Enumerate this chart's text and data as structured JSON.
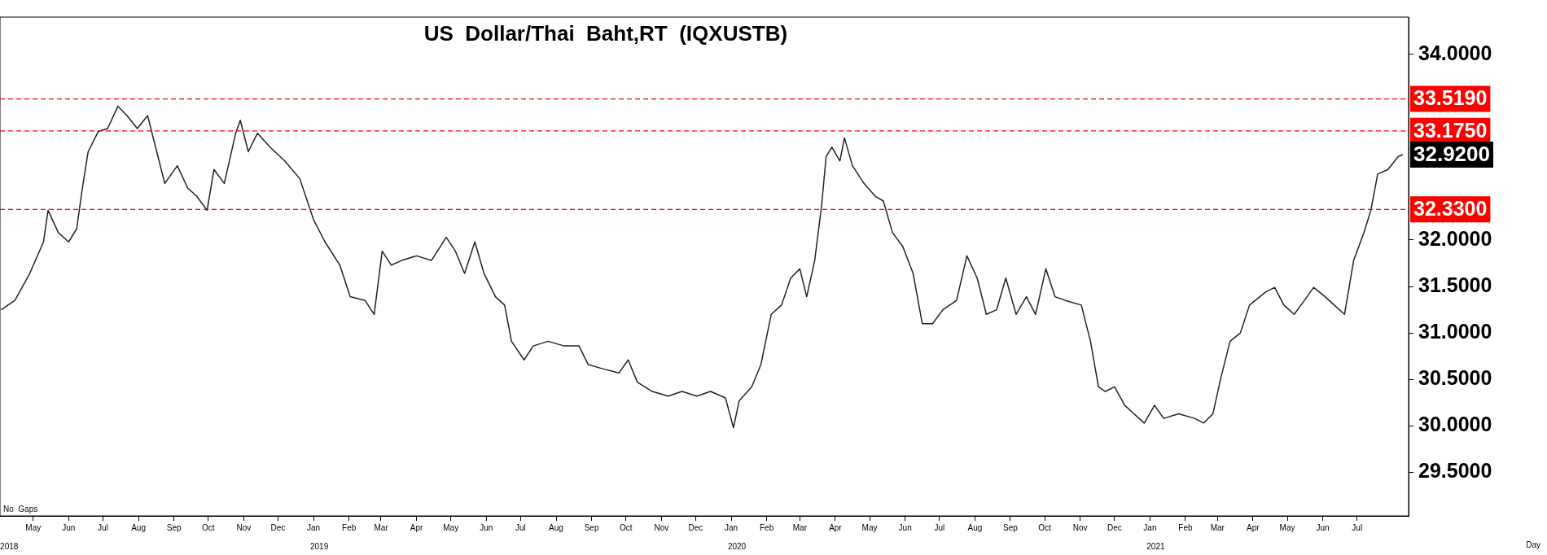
{
  "chart_data": {
    "type": "line",
    "title": "US  Dollar/Thai  Baht,RT  (IQXUSTB)",
    "x": [
      "2018-04-03",
      "2018-04-15",
      "2018-04-28",
      "2018-05-10",
      "2018-05-14",
      "2018-05-23",
      "2018-06-01",
      "2018-06-08",
      "2018-06-13",
      "2018-06-18",
      "2018-06-27",
      "2018-07-05",
      "2018-07-14",
      "2018-07-22",
      "2018-07-31",
      "2018-08-09",
      "2018-08-17",
      "2018-08-24",
      "2018-09-04",
      "2018-09-13",
      "2018-09-21",
      "2018-09-30",
      "2018-10-06",
      "2018-10-15",
      "2018-10-25",
      "2018-10-29",
      "2018-11-05",
      "2018-11-13",
      "2018-11-24",
      "2018-12-07",
      "2018-12-20",
      "2019-01-01",
      "2019-01-11",
      "2019-01-24",
      "2019-02-02",
      "2019-02-15",
      "2019-02-23",
      "2019-03-02",
      "2019-03-10",
      "2019-03-19",
      "2019-04-01",
      "2019-04-14",
      "2019-04-27",
      "2019-05-05",
      "2019-05-13",
      "2019-05-22",
      "2019-05-30",
      "2019-06-09",
      "2019-06-17",
      "2019-06-23",
      "2019-07-04",
      "2019-07-12",
      "2019-07-25",
      "2019-08-08",
      "2019-08-21",
      "2019-08-29",
      "2019-09-12",
      "2019-09-25",
      "2019-10-03",
      "2019-10-11",
      "2019-10-24",
      "2019-11-07",
      "2019-11-19",
      "2019-12-02",
      "2019-12-14",
      "2019-12-27",
      "2020-01-03",
      "2020-01-08",
      "2020-01-19",
      "2020-01-27",
      "2020-02-05",
      "2020-02-14",
      "2020-02-22",
      "2020-03-01",
      "2020-03-07",
      "2020-03-14",
      "2020-03-20",
      "2020-03-24",
      "2020-03-29",
      "2020-04-05",
      "2020-04-09",
      "2020-04-16",
      "2020-04-26",
      "2020-05-06",
      "2020-05-13",
      "2020-05-21",
      "2020-05-30",
      "2020-06-08",
      "2020-06-16",
      "2020-06-25",
      "2020-07-04",
      "2020-07-16",
      "2020-07-25",
      "2020-08-03",
      "2020-08-11",
      "2020-08-20",
      "2020-08-28",
      "2020-09-06",
      "2020-09-15",
      "2020-09-23",
      "2020-10-02",
      "2020-10-10",
      "2020-10-19",
      "2020-11-02",
      "2020-11-10",
      "2020-11-17",
      "2020-11-23",
      "2020-12-01",
      "2020-12-10",
      "2020-12-18",
      "2020-12-27",
      "2021-01-05",
      "2021-01-13",
      "2021-01-26",
      "2021-02-09",
      "2021-02-17",
      "2021-02-25",
      "2021-03-04",
      "2021-03-12",
      "2021-03-21",
      "2021-03-29",
      "2021-04-12",
      "2021-04-20",
      "2021-04-28",
      "2021-05-07",
      "2021-05-16",
      "2021-05-24",
      "2021-06-03",
      "2021-06-11",
      "2021-06-20",
      "2021-06-28",
      "2021-07-07",
      "2021-07-13",
      "2021-07-19",
      "2021-07-28",
      "2021-08-06",
      "2021-08-10"
    ],
    "series": [
      {
        "color": "#222222",
        "values": [
          31.25,
          31.35,
          31.64,
          31.98,
          32.32,
          32.08,
          31.98,
          32.12,
          32.56,
          32.95,
          33.17,
          33.2,
          33.44,
          33.34,
          33.2,
          33.34,
          32.95,
          32.61,
          32.8,
          32.56,
          32.47,
          32.32,
          32.76,
          32.61,
          33.15,
          33.29,
          32.95,
          33.15,
          33.0,
          32.85,
          32.66,
          32.22,
          31.98,
          31.73,
          31.39,
          31.35,
          31.2,
          31.88,
          31.73,
          31.78,
          31.83,
          31.78,
          32.03,
          31.88,
          31.64,
          31.98,
          31.64,
          31.39,
          31.3,
          30.91,
          30.71,
          30.86,
          30.91,
          30.86,
          30.86,
          30.66,
          30.61,
          30.57,
          30.71,
          30.47,
          30.37,
          30.32,
          30.37,
          30.32,
          30.37,
          30.3,
          29.98,
          30.27,
          30.42,
          30.66,
          31.2,
          31.3,
          31.59,
          31.69,
          31.39,
          31.78,
          32.37,
          32.9,
          33.0,
          32.85,
          33.1,
          32.8,
          32.61,
          32.47,
          32.42,
          32.08,
          31.93,
          31.64,
          31.1,
          31.1,
          31.25,
          31.35,
          31.83,
          31.59,
          31.2,
          31.25,
          31.59,
          31.2,
          31.39,
          31.2,
          31.69,
          31.39,
          31.35,
          31.3,
          30.91,
          30.42,
          30.37,
          30.42,
          30.22,
          30.13,
          30.03,
          30.22,
          30.08,
          30.13,
          30.08,
          30.03,
          30.13,
          30.52,
          30.91,
          31.0,
          31.3,
          31.44,
          31.49,
          31.3,
          31.2,
          31.35,
          31.49,
          31.39,
          31.3,
          31.2,
          31.78,
          32.08,
          32.32,
          32.71,
          32.76,
          32.9,
          32.92
        ]
      }
    ],
    "xlim": [
      "2018-04-02",
      "2021-08-15"
    ],
    "x2lim": [
      "2018-04-02",
      "2021-08-15"
    ],
    "x2ticks": [
      {
        "value": "2018-04-10",
        "label": "2018"
      },
      {
        "value": "2019-01-06",
        "label": "2019"
      },
      {
        "value": "2020-01-06",
        "label": "2020"
      },
      {
        "value": "2021-01-06",
        "label": "2021"
      }
    ],
    "xticks": [
      {
        "value": "2018-05-01",
        "label": "May"
      },
      {
        "value": "2018-06-01",
        "label": "Jun"
      },
      {
        "value": "2018-07-01",
        "label": "Jul"
      },
      {
        "value": "2018-08-01",
        "label": "Aug"
      },
      {
        "value": "2018-09-01",
        "label": "Sep"
      },
      {
        "value": "2018-10-01",
        "label": "Oct"
      },
      {
        "value": "2018-11-01",
        "label": "Nov"
      },
      {
        "value": "2018-12-01",
        "label": "Dec"
      },
      {
        "value": "2019-01-01",
        "label": "Jan"
      },
      {
        "value": "2019-02-01",
        "label": "Feb"
      },
      {
        "value": "2019-03-01",
        "label": "Mar"
      },
      {
        "value": "2019-04-01",
        "label": "Apr"
      },
      {
        "value": "2019-05-01",
        "label": "May"
      },
      {
        "value": "2019-06-01",
        "label": "Jun"
      },
      {
        "value": "2019-07-01",
        "label": "Jul"
      },
      {
        "value": "2019-08-01",
        "label": "Aug"
      },
      {
        "value": "2019-09-01",
        "label": "Sep"
      },
      {
        "value": "2019-10-01",
        "label": "Oct"
      },
      {
        "value": "2019-11-01",
        "label": "Nov"
      },
      {
        "value": "2019-12-01",
        "label": "Dec"
      },
      {
        "value": "2020-01-01",
        "label": "Jan"
      },
      {
        "value": "2020-02-01",
        "label": "Feb"
      },
      {
        "value": "2020-03-01",
        "label": "Mar"
      },
      {
        "value": "2020-04-01",
        "label": "Apr"
      },
      {
        "value": "2020-05-01",
        "label": "May"
      },
      {
        "value": "2020-06-01",
        "label": "Jun"
      },
      {
        "value": "2020-07-01",
        "label": "Jul"
      },
      {
        "value": "2020-08-01",
        "label": "Aug"
      },
      {
        "value": "2020-09-01",
        "label": "Sep"
      },
      {
        "value": "2020-10-01",
        "label": "Oct"
      },
      {
        "value": "2020-11-01",
        "label": "Nov"
      },
      {
        "value": "2020-12-01",
        "label": "Dec"
      },
      {
        "value": "2021-01-01",
        "label": "Jan"
      },
      {
        "value": "2021-02-01",
        "label": "Feb"
      },
      {
        "value": "2021-03-01",
        "label": "Mar"
      },
      {
        "value": "2021-04-01",
        "label": "Apr"
      },
      {
        "value": "2021-05-01",
        "label": "May"
      },
      {
        "value": "2021-06-01",
        "label": "Jun"
      },
      {
        "value": "2021-07-01",
        "label": "Jul"
      }
    ],
    "ylim": [
      29.03,
      34.4
    ],
    "yticks": [
      {
        "value": 29.5,
        "label": "29.5000"
      },
      {
        "value": 30.0,
        "label": "30.0000"
      },
      {
        "value": 30.5,
        "label": "30.5000"
      },
      {
        "value": 31.0,
        "label": "31.0000"
      },
      {
        "value": 31.5,
        "label": "31.5000"
      },
      {
        "value": 32.0,
        "label": "32.0000"
      },
      {
        "value": 34.0,
        "label": "34.0000"
      }
    ],
    "ref_lines": [
      {
        "axis": "y",
        "value": 33.519,
        "label": "33.5190",
        "color": "#ff0000",
        "line_style": "dashed"
      },
      {
        "axis": "y",
        "value": 33.175,
        "label": "33.1750",
        "color": "#ff0000",
        "line_style": "dashed"
      },
      {
        "axis": "y",
        "value": 32.33,
        "label": "32.3300",
        "color": "#ff0000",
        "line_style": "dashed"
      }
    ],
    "annotations": [
      {
        "text": "32.9200",
        "x": "2021-08-10",
        "y": 32.92
      },
      "No  Gaps",
      "Day"
    ],
    "grid": false,
    "legend": false,
    "marker": "none",
    "line_style": "solid"
  }
}
